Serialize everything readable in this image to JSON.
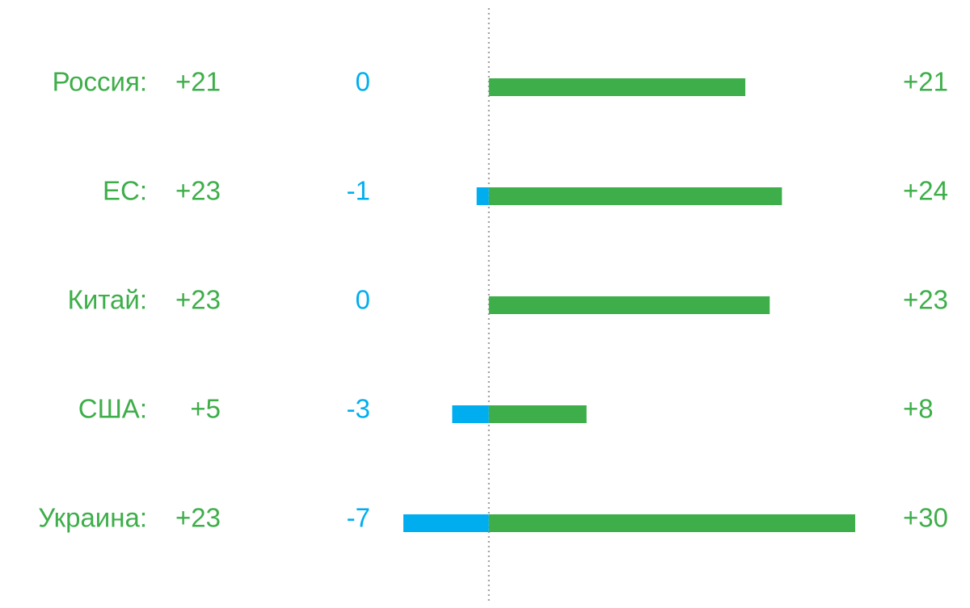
{
  "chart_data": {
    "type": "diverging_bar",
    "categories": [
      "Россия:",
      "ЕС:",
      "Китай:",
      "США:",
      "Украина:"
    ],
    "xlim": [
      -7,
      30
    ],
    "series": [
      {
        "color": "#00aeef",
        "values": [
          0,
          -1,
          0,
          -3,
          -7
        ]
      },
      {
        "color": "#3dae49",
        "values": [
          21,
          24,
          23,
          8,
          30
        ],
        "value_labels": [
          "+21",
          "+24",
          "+23",
          "+8",
          "+30"
        ]
      }
    ],
    "totals": {
      "color": "#3dae49",
      "values": [
        21,
        23,
        23,
        5,
        23
      ],
      "value_labels": [
        "+21",
        "+23",
        "+23",
        "+5",
        "+23"
      ]
    }
  }
}
